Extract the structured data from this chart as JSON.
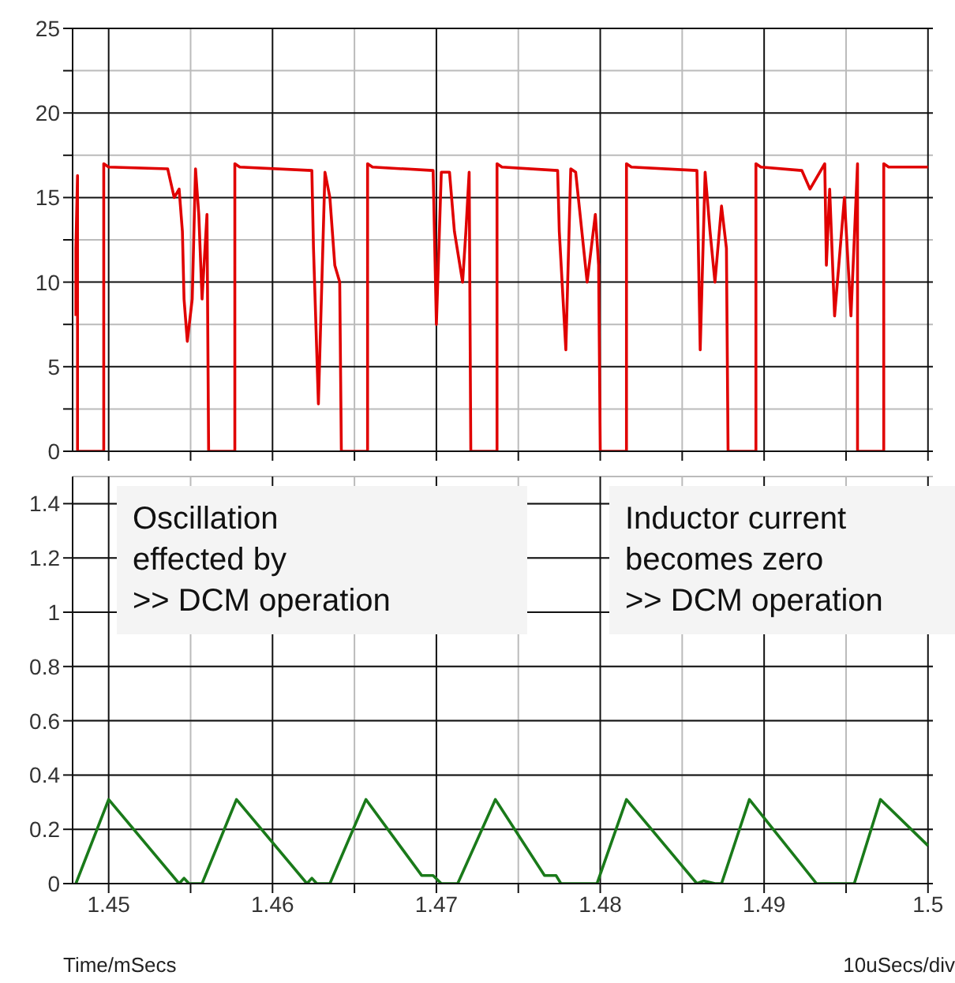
{
  "chart_data": [
    {
      "type": "line",
      "xlim": [
        1.4478,
        1.5003
      ],
      "ylim": [
        0,
        25
      ],
      "xticks": [
        1.45,
        {
          "value": 1.455,
          "label": null
        },
        1.46,
        {
          "value": 1.465,
          "label": null
        },
        1.47,
        {
          "value": 1.475,
          "label": null
        },
        1.48,
        {
          "value": 1.485,
          "label": null
        },
        1.49,
        {
          "value": 1.495,
          "label": null
        },
        1.5
      ],
      "yticks": [
        0,
        {
          "value": 2.5,
          "label": null
        },
        5,
        {
          "value": 7.5,
          "label": null
        },
        10,
        {
          "value": 12.5,
          "label": null
        },
        15,
        {
          "value": 17.5,
          "label": null
        },
        20,
        {
          "value": 22.5,
          "label": null
        },
        25
      ],
      "tick_labels": "y",
      "grid": true,
      "marker": "none",
      "line_style": "solid",
      "series": [
        {
          "color": "#e00000",
          "x": [
            1.448,
            1.448,
            1.4481,
            1.4481,
            1.4497,
            1.4497,
            1.45,
            1.4536,
            1.454,
            1.4543,
            1.4545,
            1.4546,
            1.4548,
            1.4551,
            1.4553,
            1.4555,
            1.4557,
            1.456,
            1.4561,
            1.4577,
            1.4577,
            1.458,
            1.4624,
            1.4625,
            1.4628,
            1.4632,
            1.4635,
            1.4638,
            1.4641,
            1.4642,
            1.4658,
            1.4658,
            1.4661,
            1.4698,
            1.47,
            1.4703,
            1.4708,
            1.4711,
            1.4716,
            1.4718,
            1.472,
            1.4721,
            1.4737,
            1.4737,
            1.474,
            1.4774,
            1.4775,
            1.4779,
            1.4782,
            1.4785,
            1.4792,
            1.4797,
            1.4799,
            1.48,
            1.4816,
            1.4816,
            1.4819,
            1.4859,
            1.4861,
            1.4864,
            1.4867,
            1.487,
            1.4874,
            1.4877,
            1.4878,
            1.4895,
            1.4895,
            1.4898,
            1.4923,
            1.4928,
            1.4937,
            1.4938,
            1.494,
            1.4943,
            1.4949,
            1.4953,
            1.4957,
            1.4957,
            1.4973,
            1.4973,
            1.4976,
            1.5
          ],
          "values": [
            8,
            12,
            16.3,
            0,
            0,
            17,
            16.8,
            16.7,
            15,
            15.5,
            13,
            9,
            6.5,
            9,
            16.7,
            14,
            9,
            14,
            0,
            0,
            17,
            16.8,
            16.6,
            12,
            2.8,
            16.5,
            15,
            11,
            10,
            0,
            0,
            17,
            16.8,
            16.6,
            7.5,
            16.5,
            16.5,
            13,
            10,
            13,
            16.5,
            0,
            0,
            17,
            16.8,
            16.6,
            13,
            6,
            16.7,
            16.5,
            10,
            14,
            11,
            0,
            0,
            17,
            16.8,
            16.6,
            6,
            16.5,
            13,
            10,
            14.5,
            12,
            0,
            0,
            17,
            16.8,
            16.6,
            15.5,
            17,
            11,
            15.5,
            8,
            15,
            8,
            17,
            0,
            0,
            17,
            16.8,
            16.8
          ]
        }
      ]
    },
    {
      "type": "line",
      "xlim": [
        1.4478,
        1.5003
      ],
      "ylim": [
        0,
        1.5
      ],
      "xticks": [
        1.45,
        {
          "value": 1.455,
          "label": null
        },
        1.46,
        {
          "value": 1.465,
          "label": null
        },
        1.47,
        {
          "value": 1.475,
          "label": null
        },
        1.48,
        {
          "value": 1.485,
          "label": null
        },
        1.49,
        {
          "value": 1.495,
          "label": null
        },
        1.5
      ],
      "yticks": [
        0,
        0.2,
        0.4,
        0.6,
        0.8,
        1,
        1.2,
        1.4
      ],
      "xlabel": "Time/mSecs",
      "grid": true,
      "marker": "none",
      "line_style": "solid",
      "annotations": [
        "Oscillation\neffected by\n>> DCM operation",
        "Inductor current\nbecomes zero\n>> DCM operation",
        "10uSecs/div"
      ],
      "series": [
        {
          "color": "#1a7a1a",
          "x": [
            1.448,
            1.45,
            1.4543,
            1.4546,
            1.4549,
            1.4557,
            1.4578,
            1.4621,
            1.4624,
            1.4627,
            1.4635,
            1.4657,
            1.4691,
            1.4698,
            1.4703,
            1.4713,
            1.4736,
            1.4766,
            1.4773,
            1.4776,
            1.4798,
            1.4816,
            1.4859,
            1.4863,
            1.487,
            1.4874,
            1.4891,
            1.4932,
            1.4955,
            1.4971,
            1.5
          ],
          "values": [
            0,
            0.31,
            0,
            0.02,
            0,
            0,
            0.31,
            0,
            0.02,
            0,
            0,
            0.31,
            0.03,
            0.03,
            0,
            0,
            0.31,
            0.03,
            0.03,
            0,
            0,
            0.31,
            0,
            0.01,
            0,
            0,
            0.31,
            0,
            0,
            0.31,
            0.14
          ]
        }
      ]
    }
  ]
}
